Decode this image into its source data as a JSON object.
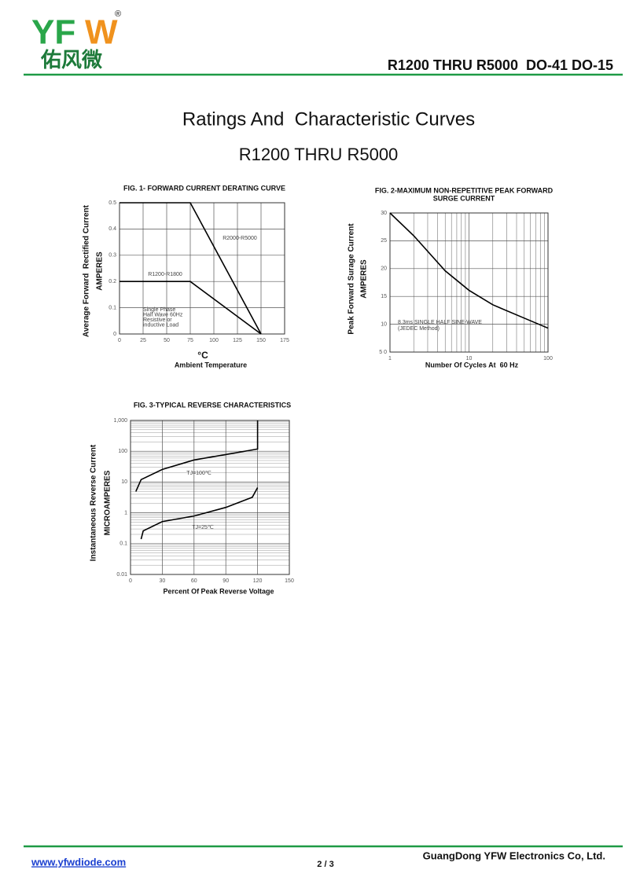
{
  "header": {
    "logo": [
      "YF",
      "W"
    ],
    "registered": "®",
    "chinese": "佑风微",
    "part": "R1200 THRU R5000  DO-41 DO-15"
  },
  "title": "Ratings And  Characteristic Curves",
  "subtitle": "R1200 THRU R5000",
  "chart_data": [
    {
      "type": "line",
      "title": "FIG. 1- FORWARD CURRENT DERATING CURVE",
      "ylabel": [
        "Average Forward  Rectified Current",
        "AMPERES"
      ],
      "xunit": "°C",
      "xlabel": "Ambient Temperature",
      "x": [
        0,
        75,
        150
      ],
      "series": [
        {
          "name": "R2000-R5000",
          "color": "#000000",
          "values": [
            0.5,
            0.5,
            0
          ]
        },
        {
          "name": "R1200-R1800",
          "color": "#000000",
          "values": [
            0.2,
            0.2,
            0
          ]
        }
      ],
      "annotations": [
        "Single Phase",
        "Half Wave 60Hz",
        "Resistive or",
        "inductive Load"
      ],
      "xlim": [
        0,
        175
      ],
      "xticks": [
        0,
        25,
        50,
        75,
        100,
        125,
        150,
        175
      ],
      "ylim": [
        0,
        0.5
      ],
      "yticks": [
        0,
        0.1,
        0.2,
        0.3,
        0.4,
        0.5
      ],
      "grid": true
    },
    {
      "type": "line",
      "title": [
        "FIG. 2-MAXIMUM NON-REPETITIVE PEAK FORWARD",
        "SURGE CURRENT"
      ],
      "ylabel": [
        "Peak Forward Surage Current",
        "AMPERES"
      ],
      "xlabel": "Number Of Cycles At  60 Hz",
      "x": [
        1,
        2,
        5,
        10,
        20,
        50,
        100
      ],
      "series": [
        {
          "name": "8.3ms SINGLE HALF SINE-WAVE",
          "color": "#000000",
          "values": [
            30,
            25.9,
            19.6,
            16.1,
            13.5,
            11.1,
            9.3
          ]
        }
      ],
      "annotations": [
        "8.3ms SINGLE HALF SINE-WAVE",
        "(JEDEC Method)"
      ],
      "xlog": true,
      "xlim": [
        1,
        100
      ],
      "xticks": [
        1,
        10,
        100
      ],
      "ylim": [
        5,
        30
      ],
      "yticks": [
        {
          "value": 5,
          "label": "5 0"
        },
        10,
        15,
        20,
        25,
        30
      ],
      "grid": true
    },
    {
      "type": "line",
      "title": "FIG. 3-TYPICAL REVERSE CHARACTERISTICS",
      "ylabel": [
        "Instantaneous Reverse Current",
        "MICROAMPERES"
      ],
      "xlabel": "Percent Of Peak Reverse Voltage",
      "series": [
        {
          "name": "TJ=100℃",
          "color": "#000000",
          "x": [
            5,
            10,
            30,
            60,
            90,
            120,
            120
          ],
          "values": [
            4.9,
            12,
            25.6,
            52,
            78,
            118,
            1000
          ]
        },
        {
          "name": "TJ=25℃",
          "color": "#000000",
          "x": [
            10,
            12,
            30,
            60,
            90,
            115,
            120
          ],
          "values": [
            0.14,
            0.26,
            0.52,
            0.79,
            1.5,
            3.2,
            6.6
          ]
        }
      ],
      "xlim": [
        0,
        150
      ],
      "xticks": [
        0,
        30,
        60,
        90,
        120,
        150
      ],
      "ylog": true,
      "ylim": [
        0.01,
        1000
      ],
      "yticks": [
        0.01,
        0.1,
        1,
        10,
        100,
        {
          "value": 1000,
          "label": "1,000"
        }
      ],
      "grid": true
    }
  ],
  "footer": {
    "url": "www.yfwdiode.com",
    "page": "2 / 3",
    "company": "GuangDong YFW Electronics Co, Ltd."
  }
}
